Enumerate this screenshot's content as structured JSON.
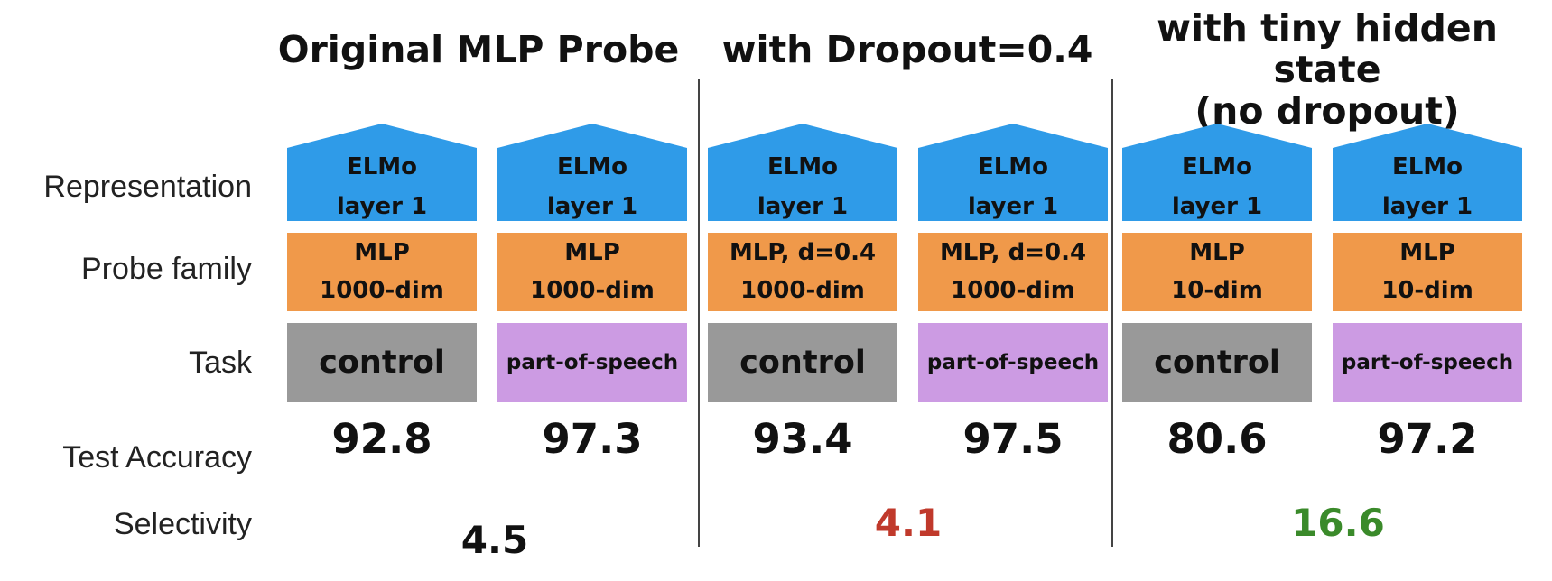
{
  "groups": [
    {
      "title": "Original MLP Probe",
      "selectivity": "4.5",
      "selectivity_color": "#111111"
    },
    {
      "title": "with Dropout=0.4",
      "selectivity": "4.1",
      "selectivity_color": "#c0392b"
    },
    {
      "title": "with tiny hidden state\n(no dropout)",
      "selectivity": "16.6",
      "selectivity_color": "#3a8a2a"
    }
  ],
  "row_labels": {
    "representation": "Representation",
    "probe_family": "Probe family",
    "task": "Task",
    "test_accuracy": "Test Accuracy",
    "selectivity": "Selectivity"
  },
  "colors": {
    "representation": "#2f9be8",
    "probe_family": "#f0994a",
    "task_control": "#999999",
    "task_pos": "#cc9be3"
  },
  "columns": [
    {
      "representation": "ELMo\nlayer 1",
      "probe": "MLP\n1000-dim",
      "task": "control",
      "accuracy": "92.8"
    },
    {
      "representation": "ELMo\nlayer 1",
      "probe": "MLP\n1000-dim",
      "task": "part-of-speech",
      "accuracy": "97.3"
    },
    {
      "representation": "ELMo\nlayer 1",
      "probe": "MLP, d=0.4\n1000-dim",
      "task": "control",
      "accuracy": "93.4"
    },
    {
      "representation": "ELMo\nlayer 1",
      "probe": "MLP, d=0.4\n1000-dim",
      "task": "part-of-speech",
      "accuracy": "97.5"
    },
    {
      "representation": "ELMo\nlayer 1",
      "probe": "MLP\n10-dim",
      "task": "control",
      "accuracy": "80.6"
    },
    {
      "representation": "ELMo\nlayer 1",
      "probe": "MLP\n10-dim",
      "task": "part-of-speech",
      "accuracy": "97.2"
    }
  ]
}
